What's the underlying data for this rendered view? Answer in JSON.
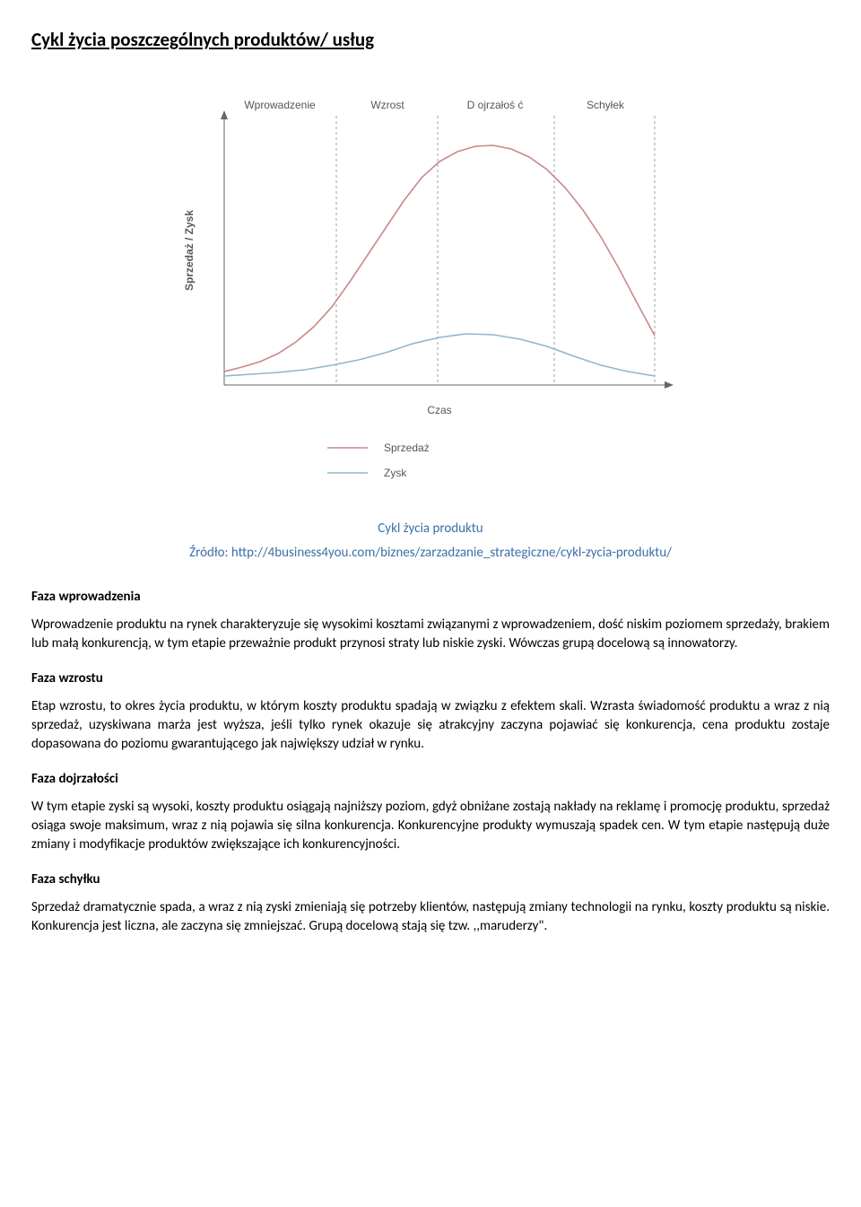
{
  "title": "Cykl życia poszczególnych produktów/ usług",
  "chart": {
    "type": "line",
    "yaxis_label": "Sprzedaż / Zysk",
    "xaxis_label": "Czas",
    "phase_labels": [
      "Wprowadzenie",
      "Wzrost",
      "D ojrzałoś ć",
      "Schyłek"
    ],
    "phase_x_positions": [
      130,
      260,
      382,
      510
    ],
    "phase_dividers_x": [
      80,
      205,
      318,
      448,
      560
    ],
    "series": [
      {
        "name": "Sprzedaż",
        "color": "#c98888",
        "points": [
          [
            80,
            325
          ],
          [
            100,
            320
          ],
          [
            120,
            314
          ],
          [
            140,
            305
          ],
          [
            160,
            292
          ],
          [
            180,
            275
          ],
          [
            200,
            253
          ],
          [
            220,
            225
          ],
          [
            240,
            195
          ],
          [
            260,
            165
          ],
          [
            280,
            135
          ],
          [
            300,
            109
          ],
          [
            320,
            91
          ],
          [
            340,
            80
          ],
          [
            360,
            74
          ],
          [
            380,
            73
          ],
          [
            400,
            77
          ],
          [
            420,
            86
          ],
          [
            440,
            100
          ],
          [
            460,
            120
          ],
          [
            480,
            145
          ],
          [
            500,
            175
          ],
          [
            520,
            210
          ],
          [
            540,
            248
          ],
          [
            560,
            285
          ]
        ]
      },
      {
        "name": "Zysk",
        "color": "#8fb8c9",
        "points": [
          [
            80,
            330
          ],
          [
            110,
            328
          ],
          [
            140,
            326
          ],
          [
            170,
            323
          ],
          [
            200,
            318
          ],
          [
            230,
            312
          ],
          [
            260,
            304
          ],
          [
            290,
            294
          ],
          [
            320,
            287
          ],
          [
            350,
            283
          ],
          [
            380,
            284
          ],
          [
            410,
            289
          ],
          [
            440,
            297
          ],
          [
            470,
            308
          ],
          [
            500,
            318
          ],
          [
            530,
            325
          ],
          [
            560,
            330
          ]
        ]
      }
    ],
    "legend": [
      {
        "label": "Sprzedaż",
        "color": "#c98888"
      },
      {
        "label": "Zysk",
        "color": "#8fb8c9"
      }
    ],
    "axis_color": "#666666",
    "divider_color": "#a0a0a0",
    "label_color": "#555555",
    "label_fontsize": 12,
    "axis_fontsize": 12,
    "background": "#ffffff",
    "line_width": 1.6
  },
  "caption": "Cykl życia produktu",
  "source_prefix": "Źródło: ",
  "source_url": "http://4business4you.com/biznes/zarzadzanie_strategiczne/cykl-zycia-produktu/",
  "sections": [
    {
      "heading": "Faza wprowadzenia",
      "text": "Wprowadzenie produktu na rynek charakteryzuje się wysokimi kosztami związanymi z wprowadzeniem, dość niskim poziomem sprzedaży, brakiem lub małą konkurencją, w tym etapie przeważnie produkt przynosi straty lub niskie zyski. Wówczas grupą docelową są innowatorzy."
    },
    {
      "heading": "Faza wzrostu",
      "text": "Etap wzrostu, to okres życia produktu, w którym koszty produktu spadają w związku z efektem skali. Wzrasta świadomość produktu a wraz z nią sprzedaż, uzyskiwana marża jest wyższa, jeśli tylko rynek okazuje się atrakcyjny zaczyna pojawiać się konkurencja, cena produktu zostaje dopasowana do poziomu gwarantującego jak największy udział w rynku."
    },
    {
      "heading": "Faza dojrzałości",
      "text": "W tym etapie zyski są wysoki, koszty produktu osiągają najniższy poziom, gdyż obniżane zostają nakłady na reklamę i promocję produktu, sprzedaż osiąga swoje maksimum, wraz z nią pojawia się silna konkurencja. Konkurencyjne produkty wymuszają spadek cen. W tym etapie następują duże zmiany i modyfikacje produktów zwiększające ich konkurencyjności."
    },
    {
      "heading": "Faza schyłku",
      "text": "Sprzedaż dramatycznie spada, a wraz z nią zyski zmieniają się potrzeby klientów, następują zmiany technologii na rynku, koszty produktu są niskie. Konkurencja jest liczna, ale zaczyna się zmniejszać. Grupą docelową stają się tzw. ,,maruderzy\"."
    }
  ]
}
